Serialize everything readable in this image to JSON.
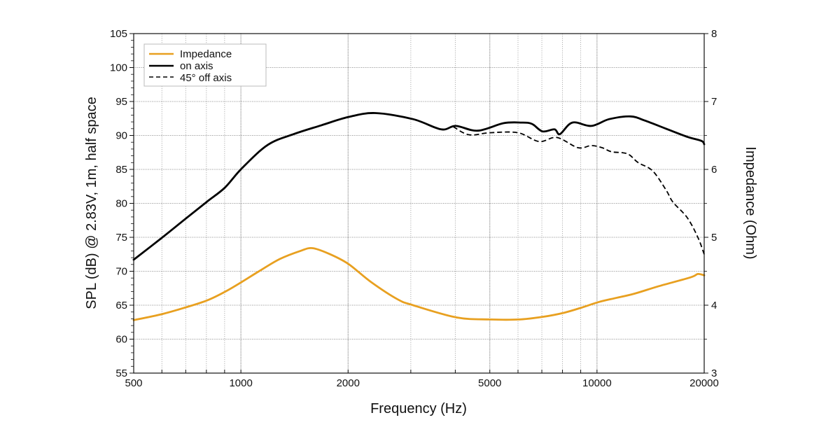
{
  "chart_data": {
    "type": "line",
    "xlabel": "Frequency (Hz)",
    "ylabel": "SPL (dB) @ 2.83V, 1m, half space",
    "y2label": "Impedance (Ohm)",
    "xscale": "log",
    "xlim": [
      500,
      20000
    ],
    "ylim": [
      55,
      105
    ],
    "y2lim": [
      3,
      8
    ],
    "grid": true,
    "legend_position": "top-left",
    "x_ticks": [
      500,
      1000,
      2000,
      5000,
      10000,
      20000
    ],
    "x_tick_labels": [
      "500",
      "1000",
      "2000",
      "5000",
      "10000",
      "20000"
    ],
    "x_minor_grid": [
      600,
      700,
      800,
      900,
      3000,
      4000,
      6000,
      7000,
      8000,
      9000
    ],
    "y_ticks": [
      55,
      60,
      65,
      70,
      75,
      80,
      85,
      90,
      95,
      100,
      105
    ],
    "y_tick_labels": [
      "55",
      "60",
      "65",
      "70",
      "75",
      "80",
      "85",
      "90",
      "95",
      "100",
      "105"
    ],
    "y2_ticks": [
      3,
      4,
      5,
      6,
      7,
      8
    ],
    "y2_tick_labels": [
      "3",
      "4",
      "5",
      "6",
      "7",
      "8"
    ],
    "series": [
      {
        "name": "Impedance",
        "axis": "right",
        "color": "#E8A020",
        "style": "solid",
        "x": [
          500,
          602,
          702,
          803,
          904,
          1004,
          1124,
          1286,
          1470,
          1588,
          1764,
          2000,
          2321,
          2748,
          3044,
          4034,
          5010,
          6060,
          7066,
          8091,
          9121,
          10160,
          11386,
          12745,
          14916,
          18320,
          19196,
          20000
        ],
        "y": [
          3.78,
          3.87,
          3.97,
          4.07,
          4.2,
          4.34,
          4.5,
          4.68,
          4.8,
          4.84,
          4.76,
          4.61,
          4.34,
          4.09,
          4.0,
          3.82,
          3.79,
          3.79,
          3.83,
          3.89,
          3.97,
          4.05,
          4.11,
          4.17,
          4.28,
          4.41,
          4.46,
          4.44
        ]
      },
      {
        "name": "on axis",
        "axis": "left",
        "color": "#000000",
        "style": "solid",
        "x": [
          500,
          599,
          698,
          801,
          901,
          1004,
          1189,
          1407,
          1684,
          2000,
          2382,
          3044,
          3650,
          4015,
          4624,
          5459,
          6128,
          6566,
          7027,
          7597,
          7871,
          8528,
          9639,
          10818,
          12416,
          13616,
          15617,
          17919,
          19651,
          20000
        ],
        "y": [
          71.7,
          74.9,
          77.7,
          80.2,
          82.3,
          85.1,
          88.6,
          90.2,
          91.5,
          92.7,
          93.3,
          92.4,
          90.9,
          91.4,
          90.7,
          91.8,
          91.9,
          91.7,
          90.6,
          90.9,
          90.2,
          91.9,
          91.4,
          92.4,
          92.8,
          92.2,
          91.0,
          89.8,
          89.2,
          88.7
        ]
      },
      {
        "name": "45° off axis",
        "axis": "left",
        "color": "#000000",
        "style": "dashed",
        "x": [
          3947,
          4368,
          5010,
          6002,
          6869,
          7712,
          8838,
          9639,
          10336,
          10979,
          12173,
          13046,
          14319,
          15617,
          16331,
          17919,
          19196,
          20000
        ],
        "y": [
          91.3,
          90.1,
          90.4,
          90.4,
          89.1,
          89.7,
          88.2,
          88.5,
          88.2,
          87.6,
          87.3,
          86.0,
          84.8,
          82.0,
          80.2,
          77.9,
          75.0,
          72.5
        ]
      }
    ]
  }
}
